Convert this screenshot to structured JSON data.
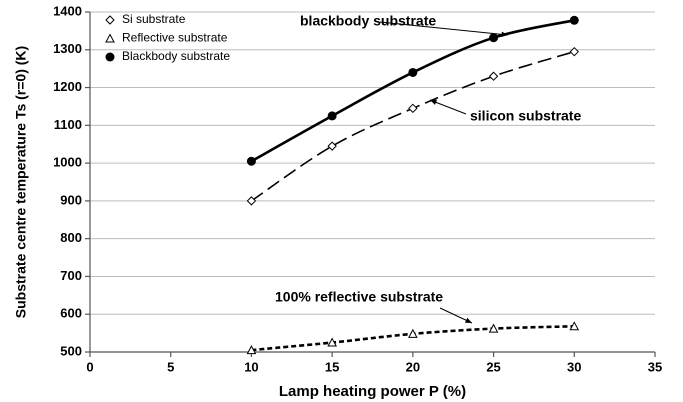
{
  "chart_data": {
    "type": "scatter",
    "xlabel": "Lamp heating power P (%)",
    "ylabel": "Substrate centre temperature Ts (r=0) (K)",
    "xlim": [
      0,
      35
    ],
    "xticks": [
      0,
      5,
      10,
      15,
      20,
      25,
      30,
      35
    ],
    "ylim": [
      500,
      1400
    ],
    "yticks": [
      500,
      600,
      700,
      800,
      900,
      1000,
      1100,
      1200,
      1300,
      1400
    ],
    "grid": true,
    "legend": "upper left",
    "x": [
      10,
      15,
      20,
      25,
      30
    ],
    "series": [
      {
        "name": "Si substrate",
        "color": "#000000",
        "marker": "diamond",
        "line": "long-dash",
        "values": [
          900,
          1045,
          1145,
          1230,
          1295
        ]
      },
      {
        "name": "Reflective substrate",
        "color": "#000000",
        "marker": "triangle",
        "line": "short-dash",
        "values": [
          505,
          525,
          548,
          562,
          568
        ]
      },
      {
        "name": "Blackbody substrate",
        "color": "#000000",
        "marker": "circle",
        "line": "solid",
        "values": [
          1005,
          1125,
          1240,
          1332,
          1378
        ]
      }
    ],
    "annotations": [
      "blackbody substrate",
      "silicon substrate",
      "100% reflective substrate"
    ]
  }
}
